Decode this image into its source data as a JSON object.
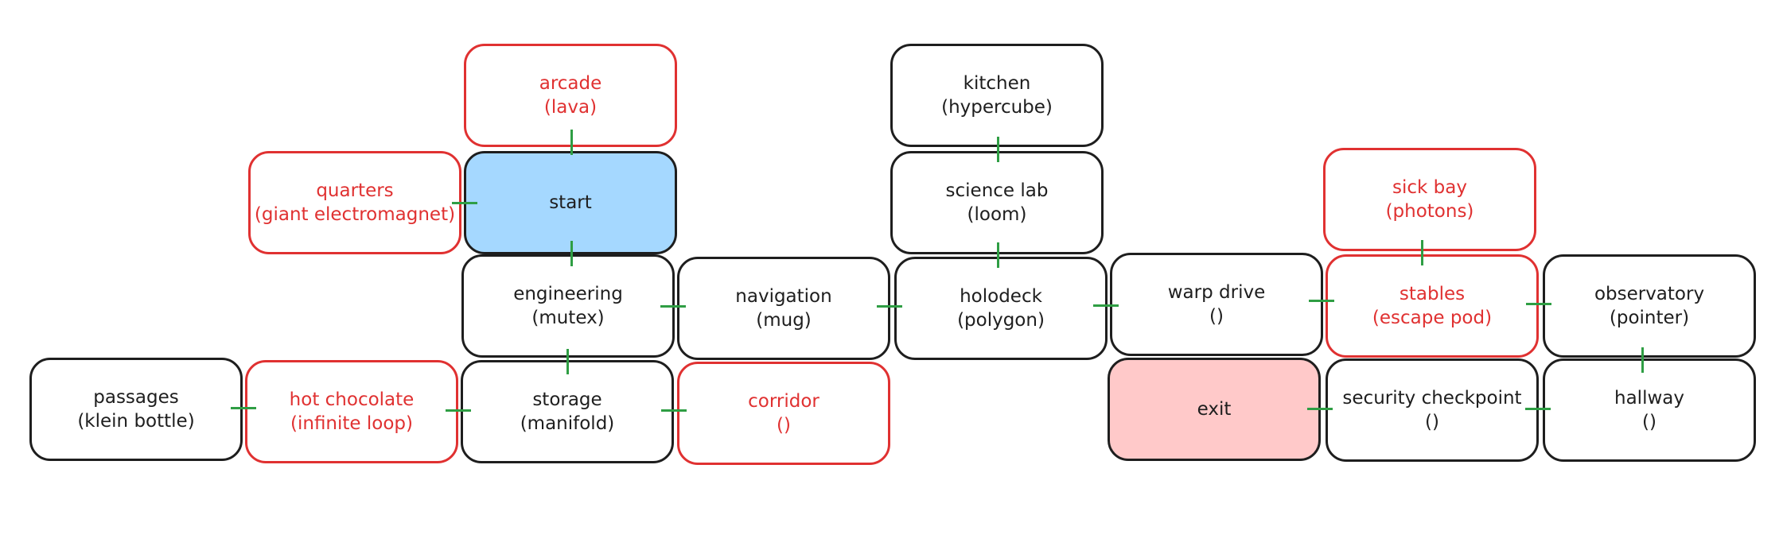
{
  "colors": {
    "room_border": "#1e1e1e",
    "hazard_border": "#e03131",
    "start_fill": "#a5d8ff",
    "exit_fill": "#ffc9c9",
    "connector": "#2f9e44"
  },
  "rooms": {
    "arcade": {
      "name": "arcade",
      "item": "(lava)",
      "hazard": true
    },
    "kitchen": {
      "name": "kitchen",
      "item": "(hypercube)",
      "hazard": false
    },
    "quarters": {
      "name": "quarters",
      "item": "(giant electromagnet)",
      "hazard": true
    },
    "start": {
      "name": "start",
      "item": "",
      "hazard": false
    },
    "science_lab": {
      "name": "science lab",
      "item": "(loom)",
      "hazard": false
    },
    "sick_bay": {
      "name": "sick bay",
      "item": "(photons)",
      "hazard": true
    },
    "engineering": {
      "name": "engineering",
      "item": "(mutex)",
      "hazard": false
    },
    "navigation": {
      "name": "navigation",
      "item": "(mug)",
      "hazard": false
    },
    "holodeck": {
      "name": "holodeck",
      "item": "(polygon)",
      "hazard": false
    },
    "warp_drive": {
      "name": "warp drive",
      "item": "()",
      "hazard": false
    },
    "stables": {
      "name": "stables",
      "item": "(escape pod)",
      "hazard": true
    },
    "observatory": {
      "name": "observatory",
      "item": "(pointer)",
      "hazard": false
    },
    "passages": {
      "name": "passages",
      "item": "(klein bottle)",
      "hazard": false
    },
    "hot_chocolate": {
      "name": "hot chocolate",
      "item": "(infinite loop)",
      "hazard": true
    },
    "storage": {
      "name": "storage",
      "item": "(manifold)",
      "hazard": false
    },
    "corridor": {
      "name": "corridor",
      "item": "()",
      "hazard": true
    },
    "exit": {
      "name": "exit",
      "item": "",
      "hazard": false
    },
    "security_checkpoint": {
      "name": "security checkpoint",
      "item": "()",
      "hazard": false
    },
    "hallway": {
      "name": "hallway",
      "item": "()",
      "hazard": false
    }
  },
  "connections": [
    [
      "arcade",
      "start"
    ],
    [
      "quarters",
      "start"
    ],
    [
      "start",
      "engineering"
    ],
    [
      "kitchen",
      "science_lab"
    ],
    [
      "science_lab",
      "holodeck"
    ],
    [
      "engineering",
      "navigation"
    ],
    [
      "navigation",
      "holodeck"
    ],
    [
      "holodeck",
      "warp_drive"
    ],
    [
      "warp_drive",
      "stables"
    ],
    [
      "sick_bay",
      "stables"
    ],
    [
      "stables",
      "observatory"
    ],
    [
      "observatory",
      "hallway"
    ],
    [
      "engineering",
      "storage"
    ],
    [
      "passages",
      "hot_chocolate"
    ],
    [
      "hot_chocolate",
      "storage"
    ],
    [
      "storage",
      "corridor"
    ],
    [
      "exit",
      "security_checkpoint"
    ],
    [
      "security_checkpoint",
      "hallway"
    ]
  ]
}
